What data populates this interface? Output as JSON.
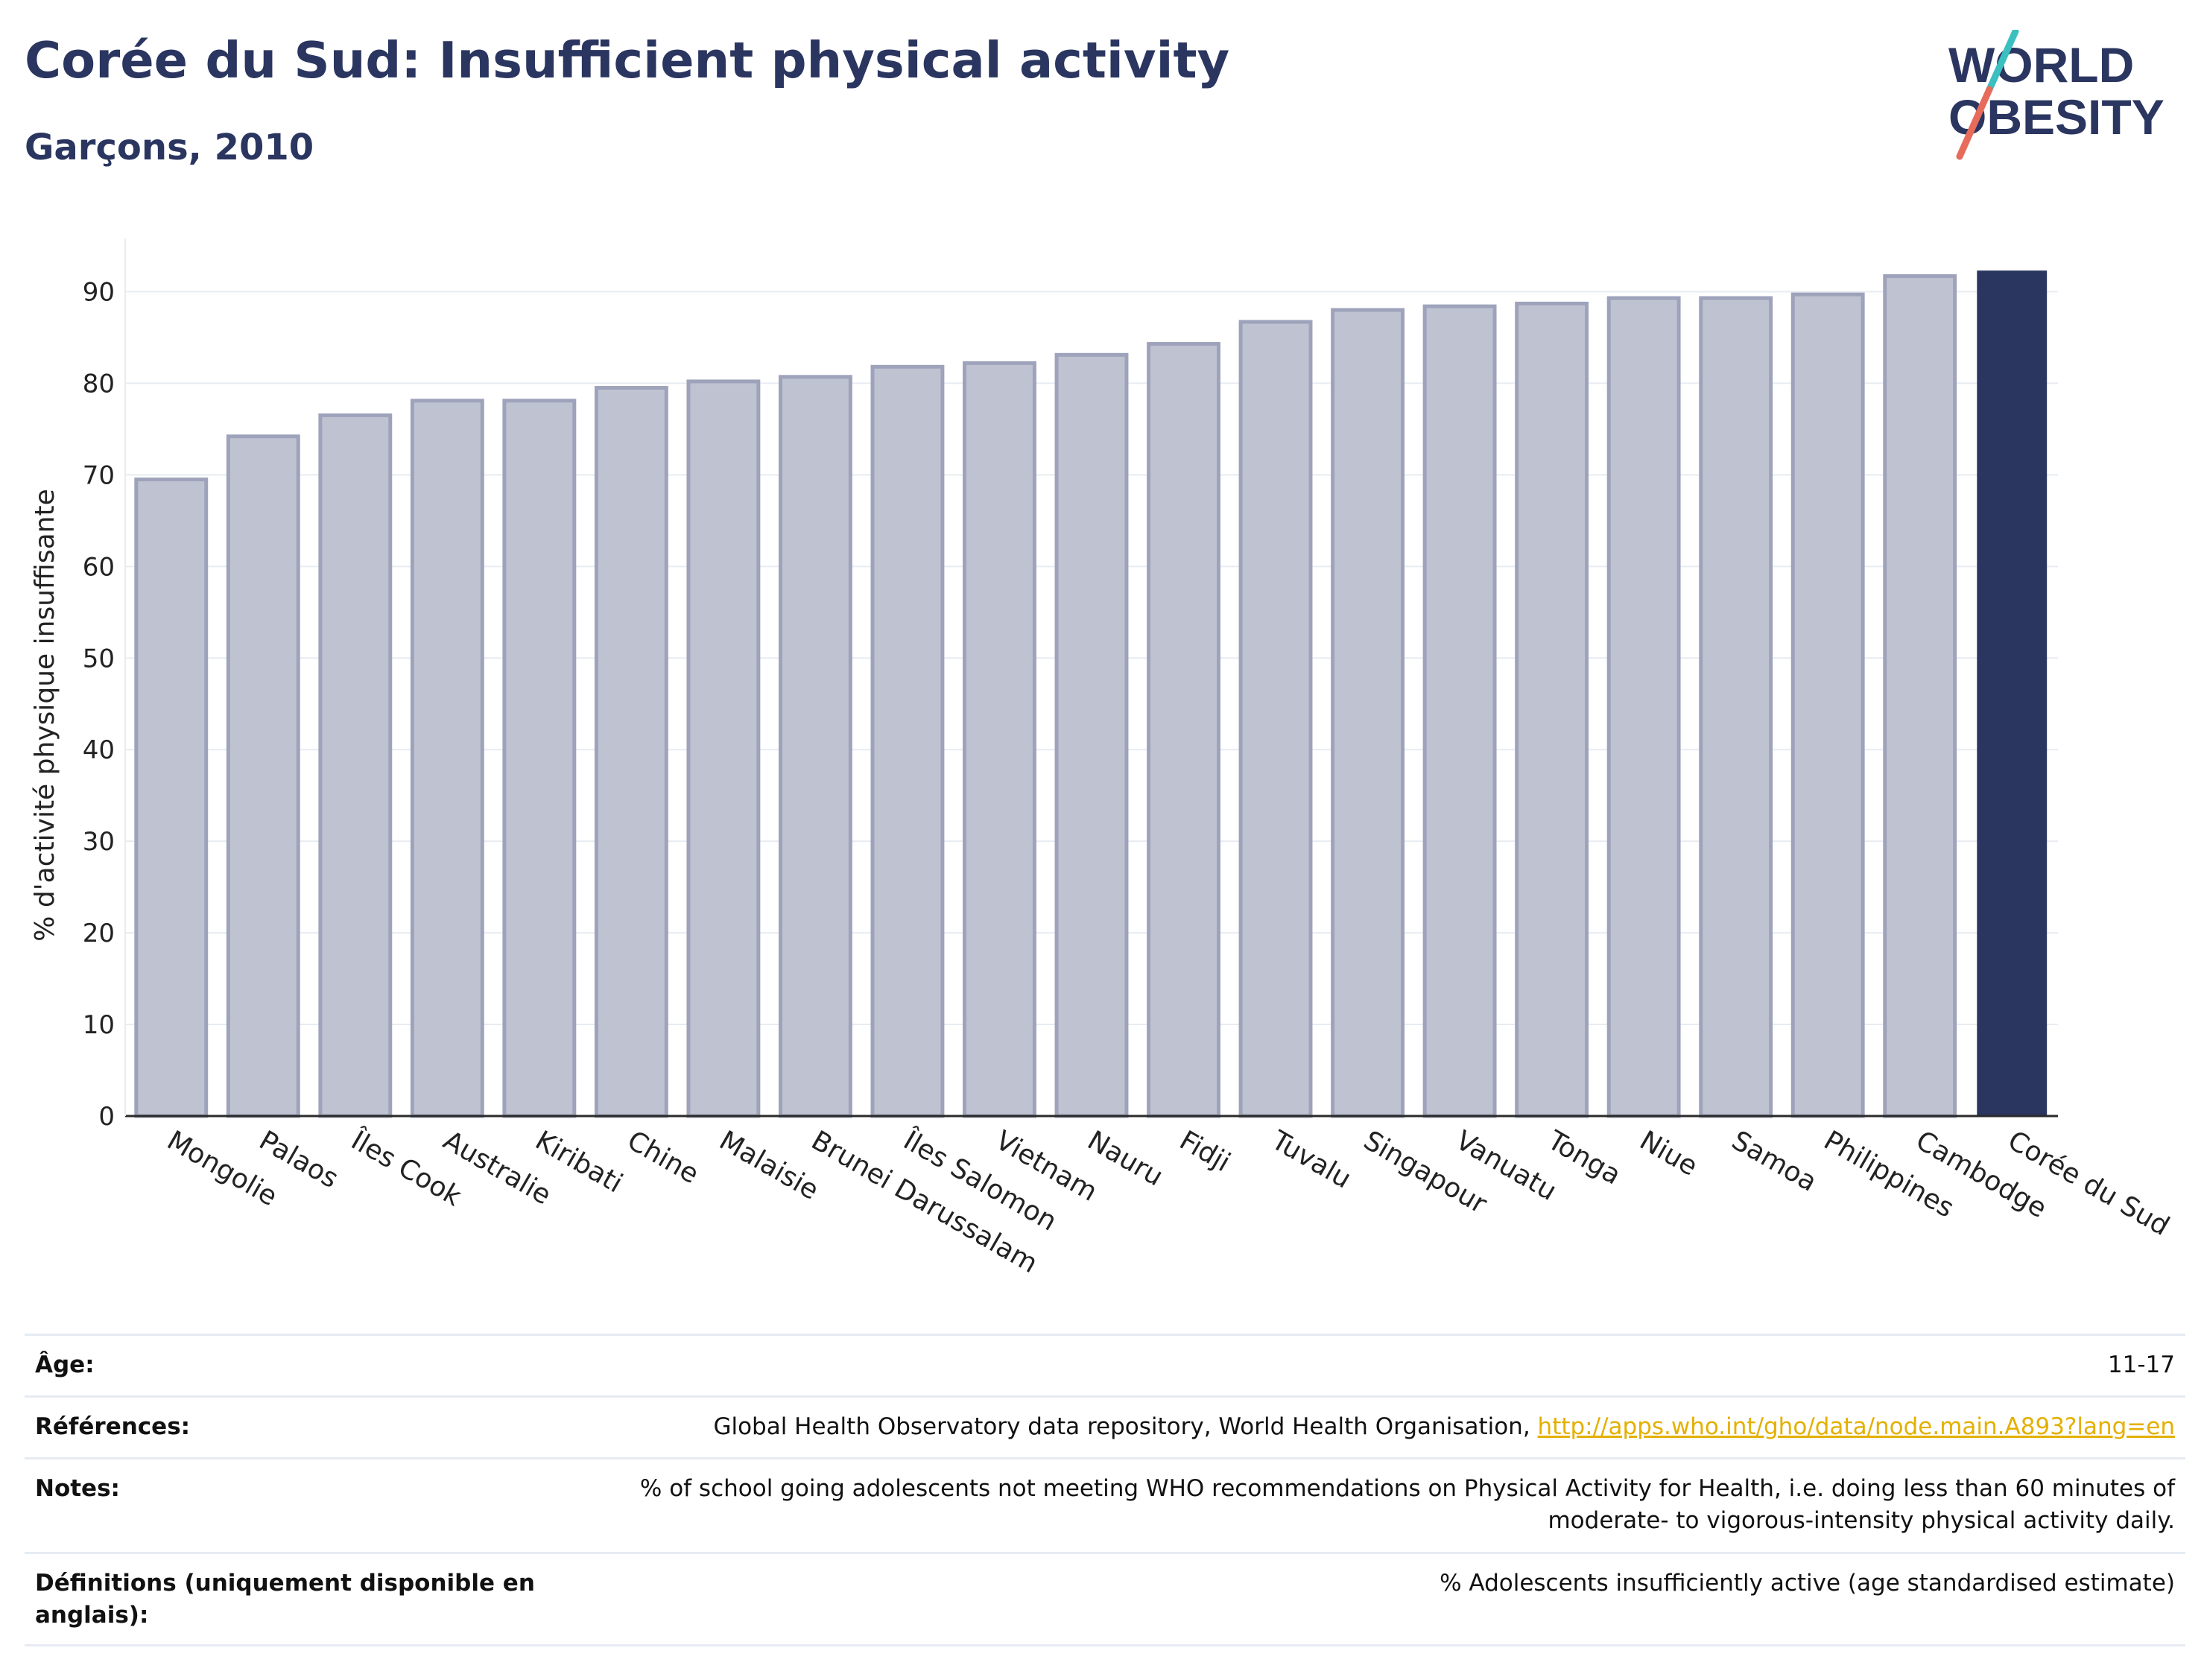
{
  "header": {
    "title": "Corée du Sud: Insufficient physical activity",
    "subtitle": "Garçons, 2010"
  },
  "logo": {
    "line1": "WORLD",
    "line2": "OBESITY",
    "colors": {
      "text": "#2a3560",
      "slash_teal": "#3cbfc0",
      "slash_red": "#e76b5b"
    }
  },
  "chart_data": {
    "type": "bar",
    "title": "",
    "xlabel": "",
    "ylabel": "% d'activité physique insuffisante",
    "ylim": [
      0,
      95
    ],
    "yticks": [
      0,
      10,
      20,
      30,
      40,
      50,
      60,
      70,
      80,
      90
    ],
    "grid": true,
    "highlight_category": "Corée du Sud",
    "colors": {
      "bar": "#bfc3d1",
      "bar_edge": "#9ea3bb",
      "highlight": "#2a3560",
      "grid": "#e8ecf2",
      "axis": "#2a2a2a"
    },
    "categories": [
      "Mongolie",
      "Palaos",
      "Îles Cook",
      "Australie",
      "Kiribati",
      "Chine",
      "Malaisie",
      "Brunei Darussalam",
      "Îles Salomon",
      "Vietnam",
      "Nauru",
      "Fidji",
      "Tuvalu",
      "Singapour",
      "Vanuatu",
      "Tonga",
      "Niue",
      "Samoa",
      "Philippines",
      "Cambodge",
      "Corée du Sud"
    ],
    "values": [
      69.5,
      74.2,
      76.5,
      78.1,
      78.1,
      79.5,
      80.2,
      80.7,
      81.8,
      82.2,
      83.1,
      84.3,
      86.7,
      88.0,
      88.4,
      88.7,
      89.3,
      89.3,
      89.7,
      91.7,
      92.3
    ]
  },
  "info": {
    "age_label": "Âge:",
    "age_value": "11-17",
    "refs_label": "Références:",
    "refs_text": "Global Health Observatory data repository, World Health Organisation, ",
    "refs_link": "http://apps.who.int/gho/data/node.main.A893?lang=en",
    "notes_label": "Notes:",
    "notes_value": "% of school going adolescents not meeting WHO recommendations on Physical Activity for Health, i.e. doing less than 60 minutes of moderate- to vigorous-intensity physical activity daily.",
    "defs_label": "Définitions (uniquement disponible en anglais):",
    "defs_value": "% Adolescents insufficiently active (age standardised estimate)"
  }
}
